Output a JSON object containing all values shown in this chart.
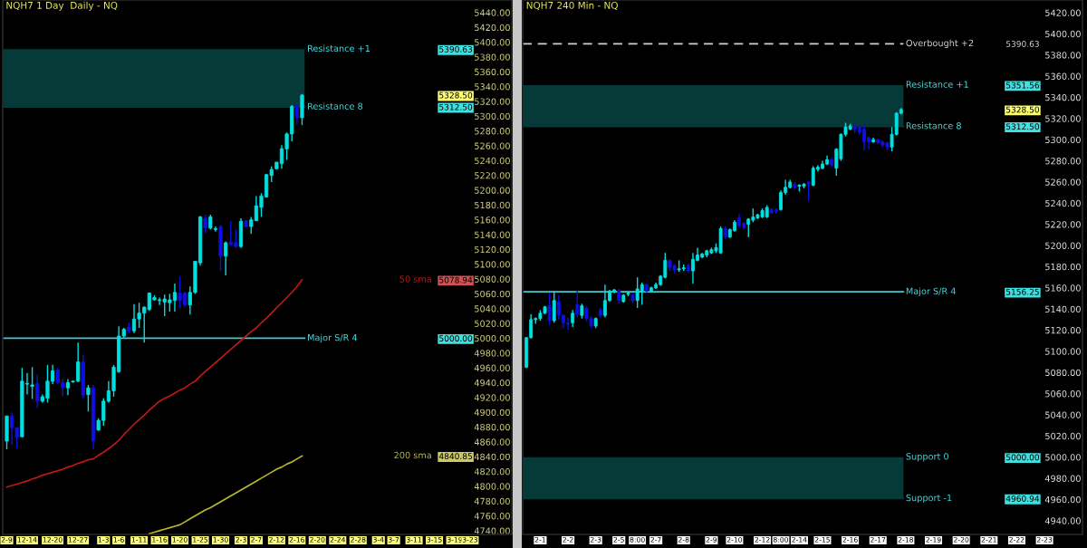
{
  "chart_data": [
    {
      "type": "candlestick",
      "title": "NQH7 1 Day  Daily - NQ",
      "categories": [
        "2-9",
        null,
        null,
        null,
        "12-14",
        null,
        null,
        null,
        null,
        "12-20",
        null,
        null,
        null,
        null,
        "12-27",
        null,
        null,
        null,
        null,
        "1-3",
        null,
        null,
        "1-6",
        null,
        null,
        null,
        "1-11",
        null,
        null,
        null,
        "1-16",
        null,
        null,
        null,
        "1-20",
        null,
        null,
        null,
        "1-25",
        null,
        null,
        null,
        "1-30",
        null,
        null,
        null,
        "2-3",
        null,
        null,
        "2-7",
        null,
        null,
        null,
        "2-12",
        null,
        null,
        null,
        "2-16",
        null,
        null,
        null,
        "2-20",
        null,
        null,
        null,
        "2-24",
        null,
        null,
        null,
        "2-28",
        null,
        null,
        null,
        "3-4",
        null,
        null,
        "3-7",
        null,
        null,
        null,
        "3-11",
        null,
        null,
        null,
        "3-15",
        null,
        null,
        null,
        "3-19",
        null,
        null,
        "3-23"
      ],
      "ohlc": [
        [
          4861,
          4895,
          4850,
          4895
        ],
        [
          4895,
          4900,
          4856,
          4879
        ],
        [
          4879,
          4880,
          4851,
          4866
        ],
        [
          4867,
          4960,
          4866,
          4942
        ],
        [
          4938,
          4953,
          4924,
          4939
        ],
        [
          4935,
          4961,
          4918,
          4937
        ],
        [
          4939,
          4951,
          4906,
          4915
        ],
        [
          4915,
          4924,
          4913,
          4921
        ],
        [
          4919,
          4964,
          4913,
          4942
        ],
        [
          4942,
          4964,
          4938,
          4956
        ],
        [
          4957,
          4960,
          4938,
          4940
        ],
        [
          4940,
          4945,
          4922,
          4933
        ],
        [
          4933,
          4945,
          4923,
          4940
        ],
        [
          4941,
          4943,
          4940,
          4942
        ],
        [
          4942,
          4994,
          4941,
          4968
        ],
        [
          4968,
          4978,
          4919,
          4923
        ],
        [
          4924,
          4937,
          4901,
          4933
        ],
        [
          4933,
          4937,
          4850,
          4861
        ],
        [
          4876,
          4892,
          4875,
          4889
        ],
        [
          4889,
          4919,
          4882,
          4915
        ],
        [
          4915,
          4942,
          4913,
          4929
        ],
        [
          4929,
          4964,
          4921,
          4961
        ],
        [
          4955,
          5016,
          4953,
          5003
        ],
        [
          5003,
          5014,
          5001,
          5012
        ],
        [
          5015,
          5021,
          5007,
          5010
        ],
        [
          5010,
          5046,
          5007,
          5026
        ],
        [
          5026,
          5048,
          5014,
          5034
        ],
        [
          5034,
          5043,
          4994,
          5042
        ],
        [
          5039,
          5062,
          5037,
          5061
        ],
        [
          5052,
          5058,
          5051,
          5055
        ],
        [
          5051,
          5055,
          5045,
          5052
        ],
        [
          5049,
          5059,
          5030,
          5053
        ],
        [
          5048,
          5060,
          5036,
          5052
        ],
        [
          5051,
          5074,
          5036,
          5062
        ],
        [
          5061,
          5083,
          5041,
          5051
        ],
        [
          5061,
          5063,
          5043,
          5045
        ],
        [
          5045,
          5070,
          5032,
          5062
        ],
        [
          5062,
          5104,
          5060,
          5104
        ],
        [
          5102,
          5165,
          5098,
          5164
        ],
        [
          5162,
          5167,
          5142,
          5149
        ],
        [
          5149,
          5167,
          5147,
          5164
        ],
        [
          5147,
          5151,
          5144,
          5148
        ],
        [
          5151,
          5153,
          5091,
          5111
        ],
        [
          5111,
          5131,
          5085,
          5129
        ],
        [
          5130,
          5158,
          5125,
          5127
        ],
        [
          5129,
          5147,
          5122,
          5124
        ],
        [
          5124,
          5162,
          5122,
          5158
        ],
        [
          5159,
          5159,
          5150,
          5151
        ],
        [
          5151,
          5164,
          5141,
          5160
        ],
        [
          5159,
          5192,
          5158,
          5179
        ],
        [
          5177,
          5196,
          5164,
          5192
        ],
        [
          5191,
          5222,
          5190,
          5221
        ],
        [
          5220,
          5232,
          5211,
          5228
        ],
        [
          5229,
          5238,
          5228,
          5238
        ],
        [
          5236,
          5261,
          5229,
          5256
        ],
        [
          5256,
          5278,
          5241,
          5276
        ],
        [
          5276,
          5315,
          5266,
          5313
        ],
        [
          5315,
          5316,
          5289,
          5298
        ],
        [
          5298,
          5330,
          5288,
          5328.5
        ],
        null,
        null,
        null,
        null,
        null,
        null,
        null,
        null,
        null,
        null,
        null,
        null,
        null,
        null,
        null,
        null,
        null,
        null,
        null,
        null,
        null,
        null,
        null,
        null,
        null,
        null,
        null,
        null,
        null,
        null,
        null,
        null,
        null
      ],
      "colors": [
        "#00e0e0",
        "#1010e0",
        "#1010e0",
        "#00e0e0",
        "#00e0e0",
        "#00e0e0",
        "#1010e0",
        "#00e0e0",
        "#00e0e0",
        "#00e0e0",
        "#1010e0",
        "#1010e0",
        "#00e0e0",
        "#00e0e0",
        "#00e0e0",
        "#1010e0",
        "#00e0e0",
        "#1010e0",
        "#00e0e0",
        "#00e0e0",
        "#00e0e0",
        "#00e0e0",
        "#00e0e0",
        "#00e0e0",
        "#1010e0",
        "#00e0e0",
        "#00e0e0",
        "#00e0e0",
        "#00e0e0",
        "#00e0e0",
        "#00e0e0",
        "#00e0e0",
        "#00e0e0",
        "#00e0e0",
        "#1010e0",
        "#1010e0",
        "#00e0e0",
        "#00e0e0",
        "#00e0e0",
        "#1010e0",
        "#00e0e0",
        "#00e0e0",
        "#1010e0",
        "#00e0e0",
        "#1010e0",
        "#1010e0",
        "#00e0e0",
        "#1010e0",
        "#00e0e0",
        "#00e0e0",
        "#00e0e0",
        "#00e0e0",
        "#00e0e0",
        "#00e0e0",
        "#00e0e0",
        "#00e0e0",
        "#00e0e0",
        "#1010e0",
        "#00e0e0",
        null,
        null,
        null,
        null,
        null,
        null,
        null,
        null,
        null,
        null,
        null,
        null,
        null,
        null,
        null,
        null,
        null,
        null,
        null,
        null,
        null,
        null,
        null,
        null,
        null,
        null,
        null,
        null,
        null,
        null,
        null,
        null,
        null
      ],
      "series": [
        {
          "type": "line",
          "name": "50 sma",
          "color": "#c01818",
          "values": [
            4799,
            4801,
            4803,
            4805,
            4807,
            4810,
            4812,
            4815,
            4817,
            4819,
            4821,
            4823,
            4826,
            4828,
            4831,
            4833,
            4836,
            4837,
            4842,
            4846,
            4851,
            4856,
            4862,
            4870,
            4877,
            4884,
            4890,
            4896,
            4903,
            4909,
            4915,
            4919,
            4922,
            4926,
            4930,
            4933,
            4938,
            4942,
            4949,
            4955,
            4961,
            4967,
            4973,
            4979,
            4985,
            4991,
            4997,
            5003,
            5009,
            5014,
            5021,
            5027,
            5034,
            5041,
            5048,
            5055,
            5062,
            5070,
            5079,
            null,
            null,
            null,
            null,
            null,
            null,
            null,
            null,
            null,
            null,
            null,
            null,
            null,
            null,
            null,
            null,
            null,
            null,
            null,
            null,
            null,
            null,
            null,
            null,
            null,
            null,
            null,
            null,
            null,
            null,
            null,
            null,
            null
          ]
        },
        {
          "type": "line",
          "name": "200 sma",
          "color": "#b8b830",
          "values": [
            null,
            null,
            null,
            null,
            null,
            null,
            null,
            null,
            null,
            null,
            null,
            null,
            null,
            null,
            null,
            null,
            null,
            null,
            null,
            null,
            null,
            null,
            null,
            null,
            null,
            null,
            null,
            null,
            4736,
            4738,
            4740,
            4742,
            4744,
            4746,
            4748,
            4752,
            4756,
            4760,
            4764,
            4768,
            4771,
            4775,
            4779,
            4783,
            4787,
            4791,
            4795,
            4799,
            4803,
            4807,
            4811,
            4815,
            4819,
            4823,
            4826,
            4830,
            4833,
            4837,
            4841,
            null,
            null,
            null,
            null,
            null,
            null,
            null,
            null,
            null,
            null,
            null,
            null,
            null,
            null,
            null,
            null,
            null,
            null,
            null,
            null,
            null,
            null,
            null,
            null,
            null,
            null,
            null,
            null,
            null,
            null,
            null,
            null,
            null
          ]
        }
      ],
      "ylim": [
        4735,
        5457
      ],
      "yticks": [
        {
          "value": 4740,
          "label": "4740.00"
        },
        {
          "value": 4760,
          "label": "4760.00"
        },
        {
          "value": 4780,
          "label": "4780.00"
        },
        {
          "value": 4800,
          "label": "4800.00"
        },
        {
          "value": 4820,
          "label": "4820.00"
        },
        {
          "value": 4840,
          "label": "4840.00"
        },
        {
          "value": 4860,
          "label": "4860.00"
        },
        {
          "value": 4880,
          "label": "4880.00"
        },
        {
          "value": 4900,
          "label": "4900.00"
        },
        {
          "value": 4920,
          "label": "4920.00"
        },
        {
          "value": 4940,
          "label": "4940.00"
        },
        {
          "value": 4960,
          "label": "4960.00"
        },
        {
          "value": 4980,
          "label": "4980.00"
        },
        {
          "value": 5000,
          "label": "5000.00"
        },
        {
          "value": 5020,
          "label": "5020.00"
        },
        {
          "value": 5040,
          "label": "5040.00"
        },
        {
          "value": 5060,
          "label": "5060.00"
        },
        {
          "value": 5080,
          "label": "5080.00"
        },
        {
          "value": 5100,
          "label": "5100.00"
        },
        {
          "value": 5120,
          "label": "5120.00"
        },
        {
          "value": 5140,
          "label": "5140.00"
        },
        {
          "value": 5160,
          "label": "5160.00"
        },
        {
          "value": 5180,
          "label": "5180.00"
        },
        {
          "value": 5200,
          "label": "5200.00"
        },
        {
          "value": 5220,
          "label": "5220.00"
        },
        {
          "value": 5240,
          "label": "5240.00"
        },
        {
          "value": 5260,
          "label": "5260.00"
        },
        {
          "value": 5280,
          "label": "5280.00"
        },
        {
          "value": 5300,
          "label": "5300.00"
        },
        {
          "value": 5320,
          "label": "5320.00"
        },
        {
          "value": 5340,
          "label": "5340.00"
        },
        {
          "value": 5360,
          "label": "5360.00"
        },
        {
          "value": 5380,
          "label": "5380.00"
        },
        {
          "value": 5400,
          "label": "5400.00"
        },
        {
          "value": 5420,
          "label": "5420.00"
        },
        {
          "value": 5440,
          "label": "5440.00"
        }
      ],
      "bands": [
        {
          "axis": "y",
          "from": 5312.5,
          "to": 5390.63,
          "label": "Resistance +1",
          "color": "#053a38"
        }
      ],
      "ref_lines": [
        {
          "axis": "y",
          "value": 5312.5,
          "label": "Resistance 8",
          "color": "#053a38"
        },
        {
          "axis": "y",
          "value": 5000,
          "label": "Major S/R 4",
          "color": "#40c8d0"
        }
      ],
      "legend": "right",
      "y2lim": [
        4735,
        5457
      ],
      "y2ticks": [
        {
          "value": 4840.85,
          "label": "4840.85"
        },
        {
          "value": 5000,
          "label": "5000.00"
        },
        {
          "value": 5078.94,
          "label": "5078.94"
        },
        {
          "value": 5312.5,
          "label": "5312.50"
        },
        {
          "value": 5328.5,
          "label": "5328.50"
        },
        {
          "value": 5390.63,
          "label": "5390.63"
        }
      ]
    },
    {
      "type": "candlestick",
      "title": "NQH7 240 Min - NQ",
      "categories": [
        null,
        null,
        null,
        "2-1",
        null,
        null,
        null,
        null,
        null,
        "2-2",
        null,
        null,
        null,
        null,
        null,
        "2-3",
        null,
        null,
        null,
        null,
        "2-5",
        null,
        null,
        null,
        "8:00",
        null,
        null,
        null,
        "2-7",
        null,
        null,
        null,
        null,
        null,
        "2-8",
        null,
        null,
        null,
        null,
        null,
        "2-9",
        null,
        null,
        null,
        null,
        "2-10",
        null,
        null,
        null,
        null,
        null,
        "2-12",
        null,
        null,
        null,
        "8:00",
        null,
        null,
        null,
        "2-14",
        null,
        null,
        null,
        null,
        "2-15",
        null,
        null,
        null,
        null,
        null,
        "2-16",
        null,
        null,
        null,
        null,
        null,
        "2-17",
        null,
        null,
        null,
        null,
        null,
        "2-18",
        null,
        null,
        null,
        null,
        null,
        "2-19",
        null,
        null,
        null,
        null,
        null,
        "2-20",
        null,
        null,
        null,
        null,
        null,
        "2-21",
        null,
        null,
        null,
        null,
        null,
        "2-22",
        null,
        null,
        null,
        null,
        null,
        "2-23"
      ],
      "ohlc": [
        [
          5085,
          5113,
          5084,
          5113
        ],
        [
          5113,
          5135,
          5112,
          5130
        ],
        [
          5130,
          5132,
          5126,
          5131
        ],
        [
          5131,
          5139,
          5129,
          5136
        ],
        [
          5136,
          5143,
          5135,
          5142
        ],
        [
          5143,
          5155,
          5125,
          5129
        ],
        [
          5129,
          5157,
          5127,
          5148
        ],
        [
          5147,
          5153,
          5130,
          5134
        ],
        [
          5134,
          5135,
          5122,
          5127
        ],
        [
          5127,
          5132,
          5120,
          5126
        ],
        [
          5127,
          5139,
          5123,
          5136
        ],
        [
          5144,
          5157,
          5132,
          5135
        ],
        [
          5134,
          5145,
          5131,
          5143
        ],
        [
          5141,
          5143,
          5128,
          5131
        ],
        [
          5131,
          5133,
          5122,
          5124
        ],
        [
          5124,
          5132,
          5122,
          5131
        ],
        [
          5139,
          5141,
          5132,
          5134
        ],
        [
          5134,
          5163,
          5132,
          5148
        ],
        [
          5148,
          5158,
          5147,
          5157
        ],
        [
          5157,
          5159,
          5155,
          5158
        ],
        [
          5157,
          5159,
          5145,
          5148
        ],
        [
          5147,
          5154,
          5146,
          5153
        ],
        [
          5154,
          5157,
          5152,
          5155
        ],
        [
          5153,
          5155,
          5146,
          5148
        ],
        [
          5148,
          5170,
          5141,
          5159
        ],
        [
          5157,
          5165,
          5144,
          5163
        ],
        [
          5163,
          5164,
          5156,
          5157
        ],
        [
          5157,
          5161,
          5156,
          5160
        ],
        [
          5160,
          5165,
          5159,
          5163
        ],
        [
          5163,
          5172,
          5162,
          5171
        ],
        [
          5170,
          5193,
          5169,
          5186
        ],
        [
          5186,
          5187,
          5176,
          5179
        ],
        [
          5181,
          5182,
          5174,
          5177
        ],
        [
          5177,
          5186,
          5175,
          5178
        ],
        [
          5178,
          5182,
          5176,
          5179
        ],
        [
          5181,
          5183,
          5174,
          5176
        ],
        [
          5176,
          5193,
          5164,
          5187
        ],
        [
          5186,
          5198,
          5185,
          5191
        ],
        [
          5189,
          5193,
          5188,
          5192
        ],
        [
          5191,
          5196,
          5189,
          5195
        ],
        [
          5193,
          5198,
          5192,
          5196
        ],
        [
          5195,
          5202,
          5193,
          5198
        ],
        [
          5193,
          5218,
          5192,
          5216
        ],
        [
          5216,
          5218,
          5206,
          5208
        ],
        [
          5208,
          5216,
          5207,
          5215
        ],
        [
          5214,
          5224,
          5213,
          5222
        ],
        [
          5226,
          5230,
          5217,
          5219
        ],
        [
          5221,
          5222,
          5215,
          5217
        ],
        [
          5220,
          5226,
          5208,
          5225
        ],
        [
          5224,
          5235,
          5222,
          5227
        ],
        [
          5226,
          5230,
          5225,
          5229
        ],
        [
          5227,
          5235,
          5226,
          5233
        ],
        [
          5227,
          5238,
          5226,
          5236
        ],
        [
          5234,
          5236,
          5230,
          5231
        ],
        [
          5234,
          5235,
          5230,
          5232
        ],
        [
          5234,
          5252,
          5233,
          5250
        ],
        [
          5250,
          5262,
          5248,
          5255
        ],
        [
          5255,
          5262,
          5254,
          5260
        ],
        [
          5258,
          5260,
          5253,
          5255
        ],
        [
          5256,
          5258,
          5251,
          5257
        ],
        [
          5256,
          5259,
          5254,
          5258
        ],
        [
          5260,
          5261,
          5242,
          5258
        ],
        [
          5257,
          5275,
          5256,
          5273
        ],
        [
          5272,
          5276,
          5270,
          5274
        ],
        [
          5273,
          5280,
          5272,
          5277
        ],
        [
          5277,
          5285,
          5276,
          5281
        ],
        [
          5281,
          5283,
          5274,
          5276
        ],
        [
          5273,
          5292,
          5266,
          5291
        ],
        [
          5282,
          5306,
          5280,
          5305
        ],
        [
          5305,
          5316,
          5303,
          5312
        ],
        [
          5310,
          5315,
          5309,
          5313
        ],
        [
          5313,
          5314,
          5306,
          5310
        ],
        [
          5312,
          5313,
          5305,
          5307
        ],
        [
          5310,
          5316,
          5290,
          5298
        ],
        [
          5302,
          5303,
          5291,
          5298
        ],
        [
          5298,
          5302,
          5297,
          5300
        ],
        [
          5300,
          5301,
          5296,
          5297
        ],
        [
          5298,
          5299,
          5293,
          5295
        ],
        [
          5297,
          5298,
          5290,
          5293
        ],
        [
          5293,
          5312,
          5289,
          5305
        ],
        [
          5305,
          5326,
          5304,
          5325
        ],
        [
          5325,
          5330,
          5324,
          5328.5
        ],
        null,
        null,
        null,
        null,
        null,
        null,
        null,
        null,
        null,
        null,
        null,
        null,
        null,
        null,
        null,
        null,
        null,
        null,
        null,
        null,
        null,
        null,
        null,
        null,
        null,
        null,
        null,
        null,
        null,
        null,
        null
      ],
      "colors": [
        "#00e0e0",
        "#00e0e0",
        "#00e0e0",
        "#00e0e0",
        "#00e0e0",
        "#1010e0",
        "#00e0e0",
        "#1010e0",
        "#1010e0",
        "#1010e0",
        "#00e0e0",
        "#1010e0",
        "#00e0e0",
        "#1010e0",
        "#1010e0",
        "#00e0e0",
        "#1010e0",
        "#00e0e0",
        "#00e0e0",
        "#00e0e0",
        "#1010e0",
        "#00e0e0",
        "#00e0e0",
        "#1010e0",
        "#00e0e0",
        "#00e0e0",
        "#1010e0",
        "#00e0e0",
        "#00e0e0",
        "#00e0e0",
        "#00e0e0",
        "#1010e0",
        "#1010e0",
        "#00e0e0",
        "#00e0e0",
        "#1010e0",
        "#00e0e0",
        "#00e0e0",
        "#00e0e0",
        "#00e0e0",
        "#00e0e0",
        "#00e0e0",
        "#00e0e0",
        "#1010e0",
        "#00e0e0",
        "#00e0e0",
        "#1010e0",
        "#1010e0",
        "#00e0e0",
        "#00e0e0",
        "#00e0e0",
        "#00e0e0",
        "#00e0e0",
        "#1010e0",
        "#1010e0",
        "#00e0e0",
        "#00e0e0",
        "#00e0e0",
        "#1010e0",
        "#00e0e0",
        "#00e0e0",
        "#1010e0",
        "#00e0e0",
        "#00e0e0",
        "#00e0e0",
        "#00e0e0",
        "#1010e0",
        "#00e0e0",
        "#00e0e0",
        "#00e0e0",
        "#00e0e0",
        "#1010e0",
        "#1010e0",
        "#1010e0",
        "#1010e0",
        "#00e0e0",
        "#1010e0",
        "#1010e0",
        "#1010e0",
        "#00e0e0",
        "#00e0e0",
        "#00e0e0",
        null,
        null,
        null,
        null,
        null,
        null,
        null,
        null,
        null,
        null,
        null,
        null,
        null,
        null,
        null,
        null,
        null,
        null,
        null,
        null,
        null,
        null,
        null,
        null,
        null,
        null,
        null,
        null,
        null,
        null,
        null
      ],
      "ylim": [
        4927,
        5432
      ],
      "yticks": [
        {
          "value": 4940,
          "label": "4940.00"
        },
        {
          "value": 4960,
          "label": "4960.00"
        },
        {
          "value": 4980,
          "label": "4980.00"
        },
        {
          "value": 5000,
          "label": "5000.00"
        },
        {
          "value": 5020,
          "label": "5020.00"
        },
        {
          "value": 5040,
          "label": "5040.00"
        },
        {
          "value": 5060,
          "label": "5060.00"
        },
        {
          "value": 5080,
          "label": "5080.00"
        },
        {
          "value": 5100,
          "label": "5100.00"
        },
        {
          "value": 5120,
          "label": "5120.00"
        },
        {
          "value": 5140,
          "label": "5140.00"
        },
        {
          "value": 5160,
          "label": "5160.00"
        },
        {
          "value": 5180,
          "label": "5180.00"
        },
        {
          "value": 5200,
          "label": "5200.00"
        },
        {
          "value": 5220,
          "label": "5220.00"
        },
        {
          "value": 5240,
          "label": "5240.00"
        },
        {
          "value": 5260,
          "label": "5260.00"
        },
        {
          "value": 5280,
          "label": "5280.00"
        },
        {
          "value": 5300,
          "label": "5300.00"
        },
        {
          "value": 5320,
          "label": "5320.00"
        },
        {
          "value": 5340,
          "label": "5340.00"
        },
        {
          "value": 5360,
          "label": "5360.00"
        },
        {
          "value": 5380,
          "label": "5380.00"
        },
        {
          "value": 5400,
          "label": "5400.00"
        },
        {
          "value": 5420,
          "label": "5420.00"
        }
      ],
      "bands": [
        {
          "axis": "y",
          "from": 5312.5,
          "to": 5351.56,
          "label": "Resistance +1",
          "color": "#053a38"
        },
        {
          "axis": "y",
          "from": 4960.94,
          "to": 5000,
          "label": "Support 0",
          "color": "#053a38"
        }
      ],
      "ref_lines": [
        {
          "axis": "y",
          "value": 5390.63,
          "label": "Overbought +2",
          "color": "#d0d0d0",
          "line_style": "dashed"
        },
        {
          "axis": "y",
          "value": 5312.5,
          "label": "Resistance 8",
          "color": "#053a38"
        },
        {
          "axis": "y",
          "value": 5156.25,
          "label": "Major S/R 4",
          "color": "#40c8d0"
        },
        {
          "axis": "y",
          "value": 4960.94,
          "label": "Support -1",
          "color": "#053a38"
        }
      ],
      "y2lim": [
        4927,
        5432
      ],
      "y2ticks": [
        {
          "value": 4960.94,
          "label": "4960.94"
        },
        {
          "value": 5000,
          "label": "5000.00"
        },
        {
          "value": 5156.25,
          "label": "5156.25"
        },
        {
          "value": 5312.5,
          "label": "5312.50"
        },
        {
          "value": 5328.5,
          "label": "5328.50"
        },
        {
          "value": 5351.56,
          "label": "5351.56"
        },
        {
          "value": 5390.63,
          "label": "5390.63"
        }
      ]
    }
  ]
}
